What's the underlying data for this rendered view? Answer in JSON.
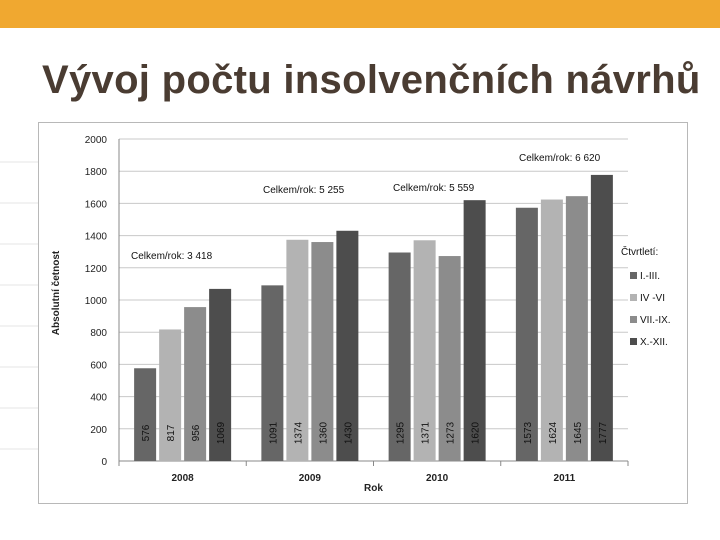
{
  "slide": {
    "title": "Vývoj počtu insolvenčních návrhů",
    "accent_color": "#f0a830",
    "title_color": "#4a3c32"
  },
  "chart_data": {
    "type": "bar",
    "xlabel": "Rok",
    "ylabel": "Absolutní četnost",
    "ylim": [
      0,
      2000
    ],
    "yticks": [
      "0",
      "200",
      "400",
      "600",
      "800",
      "1000",
      "1200",
      "1400",
      "1600",
      "1800",
      "2000"
    ],
    "grid": true,
    "categories": [
      "2008",
      "2009",
      "2010",
      "2011"
    ],
    "series": [
      {
        "name": "I.-III.",
        "color": "#666666",
        "values": [
          576,
          1091,
          1295,
          1573
        ]
      },
      {
        "name": "IV -VI",
        "color": "#b3b3b3",
        "values": [
          817,
          1374,
          1371,
          1624
        ]
      },
      {
        "name": "VII.-IX.",
        "color": "#8c8c8c",
        "values": [
          956,
          1360,
          1273,
          1645
        ]
      },
      {
        "name": "X.-XII.",
        "color": "#4d4d4d",
        "values": [
          1069,
          1430,
          1620,
          1777
        ]
      }
    ],
    "legend_title": "Čtvrtletí:",
    "legend_position": "right",
    "annotations": [
      "Celkem/rok: 3 418",
      "Celkem/rok: 5 255",
      "Celkem/rok: 5 559",
      "Celkem/rok: 6 620"
    ]
  }
}
